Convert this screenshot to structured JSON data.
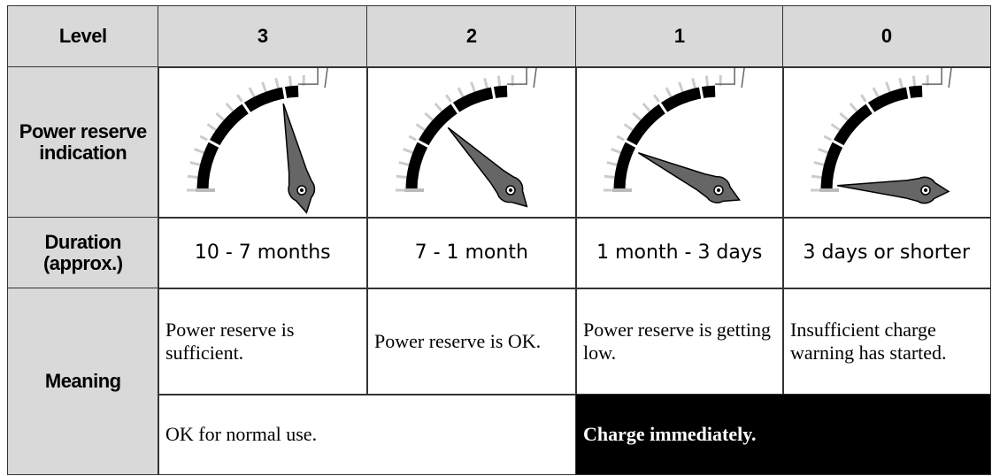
{
  "table": {
    "header": [
      "Level",
      "3",
      "2",
      "1",
      "0"
    ],
    "indication_label": "Power reserve indication",
    "duration": {
      "label": "Duration (approx.)",
      "values": [
        "10 - 7 months",
        "7 - 1 month",
        "1 month - 3 days",
        "3 days or shorter"
      ]
    },
    "meaning": {
      "label": "Meaning",
      "values": [
        "Power reserve is sufficient.",
        "Power reserve is OK.",
        "Power reserve is getting low.",
        "Insufficient charge warning has started."
      ],
      "summary": [
        "OK for normal use.",
        "Charge immediately."
      ]
    }
  }
}
